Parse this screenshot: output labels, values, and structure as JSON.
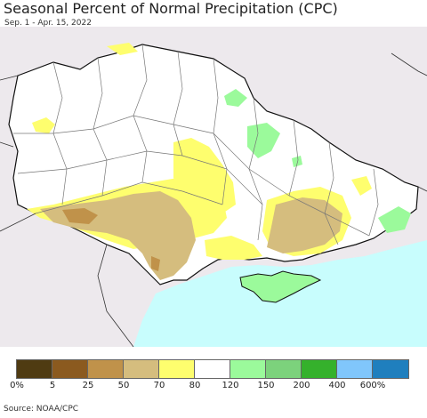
{
  "header": {
    "title": "Seasonal Percent of Normal Precipitation (CPC)",
    "date_range": "Sep. 1 - Apr. 15, 2022"
  },
  "legend": {
    "colors": [
      "#4f3b12",
      "#8b5a1f",
      "#c0924a",
      "#d5bd7e",
      "#fefe6e",
      "#ffffff",
      "#9bfa9b",
      "#7cd27c",
      "#35b12c",
      "#80c6fb",
      "#1f7fbe"
    ],
    "tick_labels": [
      "0%",
      "5",
      "25",
      "50",
      "70",
      "80",
      "120",
      "150",
      "200",
      "400",
      "600%"
    ]
  },
  "map": {
    "land_color": "#ffffff",
    "outside_color": "#ede9ed",
    "sea_color": "#c8fdfd",
    "border_color": "#111111",
    "oblast_line_color": "#777777"
  },
  "footer": {
    "source": "Source: NOAA/CPC"
  }
}
